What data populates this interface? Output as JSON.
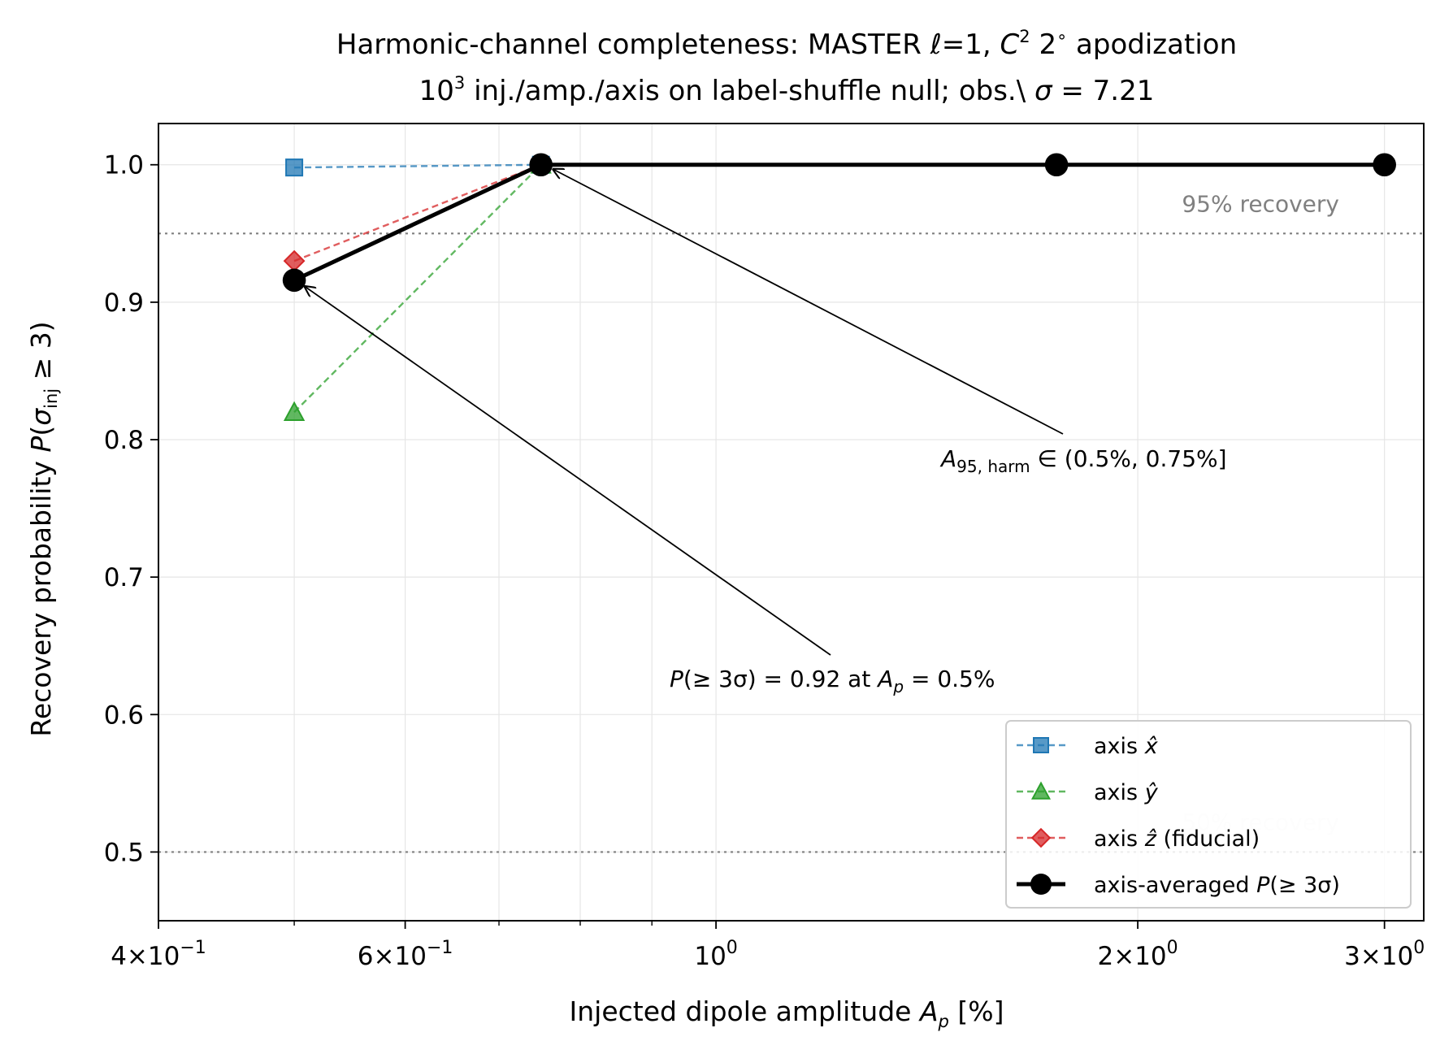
{
  "chart_data": {
    "type": "line",
    "title": {
      "line1_prefix": "Harmonic-channel completeness: MASTER ",
      "line1_ell": "ℓ",
      "line1_mid": "=1, ",
      "line1_C": "C",
      "line1_C_sup": "2",
      "line1_deg": " 2",
      "line1_deg_sup": "∘",
      "line1_suffix": " apodization",
      "line2_base": "10",
      "line2_sup": "3",
      "line2_rest": " inj./amp./axis on label-shuffle null; obs.\\ ",
      "line2_sigma": "σ",
      "line2_val": " = 7.21"
    },
    "xlabel": {
      "prefix": "Injected dipole amplitude ",
      "var": "A",
      "var_sub": "p",
      "suffix": " [%]"
    },
    "ylabel": {
      "prefix": "Recovery probability ",
      "var": "P",
      "open": "(",
      "sigma": "σ",
      "sigma_sub": "inj",
      "rest": " ≥ 3)"
    },
    "xscale": "log",
    "xlim": [
      0.4,
      3.2
    ],
    "ylim": [
      0.45,
      1.03
    ],
    "grid": true,
    "x_ticks_major": [
      {
        "value": 0.4,
        "mant": "4",
        "times": "×",
        "base": "10",
        "exp": "−1"
      },
      {
        "value": 0.6,
        "mant": "6",
        "times": "×",
        "base": "10",
        "exp": "−1"
      },
      {
        "value": 1.0,
        "mant": "",
        "times": "",
        "base": "10",
        "exp": "0"
      },
      {
        "value": 2.0,
        "mant": "2",
        "times": "×",
        "base": "10",
        "exp": "0"
      },
      {
        "value": 3.0,
        "mant": "3",
        "times": "×",
        "base": "10",
        "exp": "0"
      }
    ],
    "x_ticks_minor": [
      0.5,
      0.7,
      0.8,
      0.9
    ],
    "y_ticks": [
      {
        "value": 0.5,
        "label": "0.5"
      },
      {
        "value": 0.6,
        "label": "0.6"
      },
      {
        "value": 0.7,
        "label": "0.7"
      },
      {
        "value": 0.8,
        "label": "0.8"
      },
      {
        "value": 0.9,
        "label": "0.9"
      },
      {
        "value": 1.0,
        "label": "1.0"
      }
    ],
    "reference_lines": [
      {
        "y": 0.95,
        "label": "95% recovery",
        "color": "#808080",
        "label_color": "#808080"
      },
      {
        "y": 0.5,
        "label": "50% recovery",
        "color": "#808080",
        "label_color": "#f0f0f0"
      }
    ],
    "series": [
      {
        "legend_base": "axis ",
        "legend_hat": "x̂",
        "legend_tail": "",
        "color": "#1f77b4",
        "marker": "square",
        "style": "dashed",
        "x": [
          0.5,
          0.75
        ],
        "y": [
          0.998,
          1.0
        ]
      },
      {
        "legend_base": "axis ",
        "legend_hat": "ŷ",
        "legend_tail": "",
        "color": "#2ca02c",
        "marker": "triangle",
        "style": "dashed",
        "x": [
          0.5,
          0.75
        ],
        "y": [
          0.82,
          1.0
        ]
      },
      {
        "legend_base": "axis ",
        "legend_hat": "ẑ",
        "legend_tail": " (fiducial)",
        "color": "#d62728",
        "marker": "diamond",
        "style": "dashed",
        "x": [
          0.5,
          0.75
        ],
        "y": [
          0.93,
          1.0
        ]
      },
      {
        "legend_base": "axis-averaged ",
        "legend_hat": "P",
        "legend_tail": "(≥ 3σ)",
        "color": "#000000",
        "marker": "circle",
        "style": "solid",
        "x": [
          0.5,
          0.75,
          1.75,
          3.0
        ],
        "y": [
          0.916,
          1.0,
          1.0,
          1.0
        ]
      }
    ],
    "annotations": [
      {
        "target": [
          0.75,
          1.0
        ],
        "text_at": [
          1.5,
          0.79
        ],
        "parts": {
          "var": "A",
          "sub": "95, harm",
          "rest": " ∈ (0.5%, 0.75%]"
        }
      },
      {
        "target": [
          0.5,
          0.916
        ],
        "text_at": [
          0.92,
          0.625
        ],
        "parts": {
          "p": "P",
          "mid": "(≥ 3σ) = 0.92 at ",
          "a": "A",
          "asub": "p",
          "end": " = 0.5%"
        }
      }
    ],
    "legend_position": "lower-right"
  }
}
